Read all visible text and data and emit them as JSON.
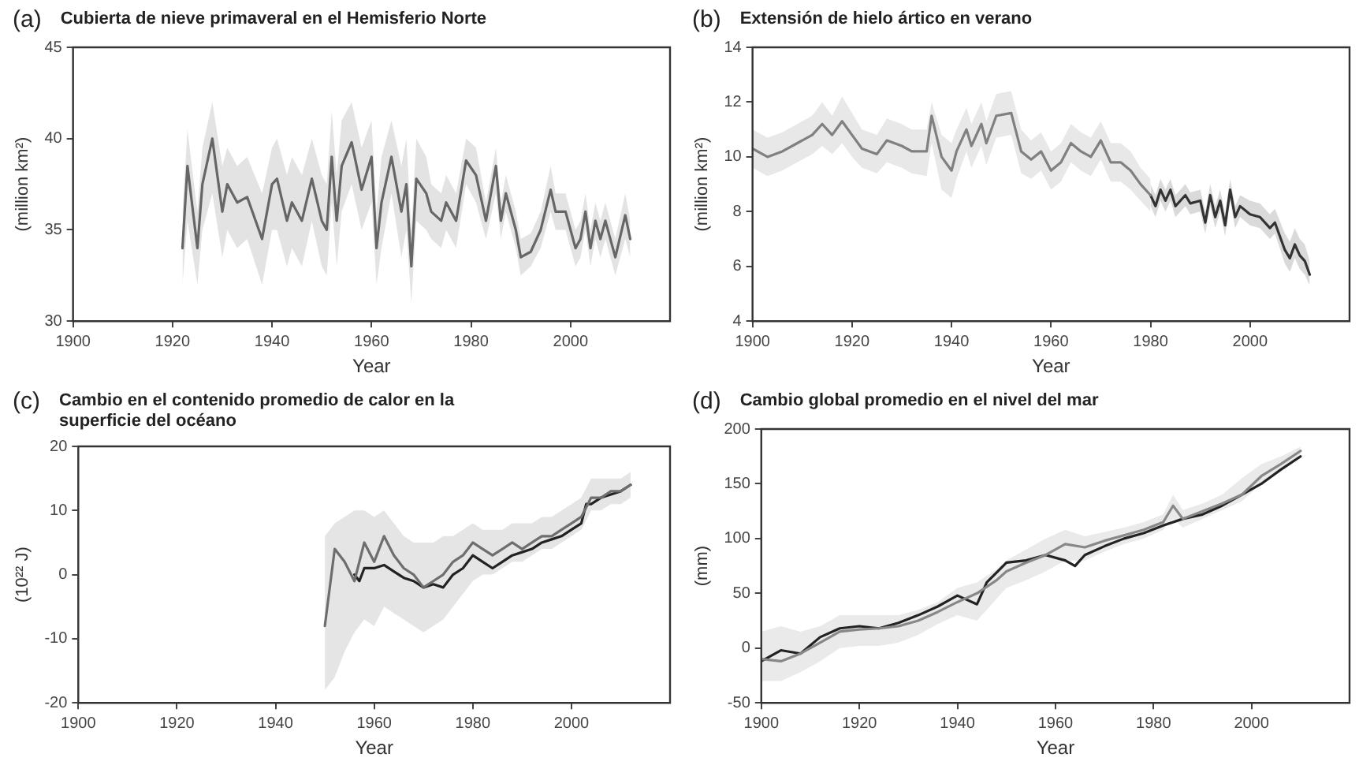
{
  "chart_data": [
    {
      "type": "line",
      "title": "Cubierta de nieve primaveral en el Hemisferio Norte",
      "annotations": [
        "(a)"
      ],
      "xlabel": "Year",
      "ylabel": "(million km²)",
      "xlim": [
        1900,
        2020
      ],
      "xticks": [
        1900,
        1920,
        1940,
        1960,
        1980,
        2000
      ],
      "ylim": [
        30,
        45
      ],
      "yticks": [
        30,
        35,
        40,
        45
      ],
      "grid": false,
      "legend": false,
      "marker": "none",
      "line_style": "solid",
      "series": [
        {
          "color": "#666666",
          "x": [
            1922,
            1923,
            1925,
            1926,
            1928,
            1930,
            1931,
            1933,
            1935,
            1938,
            1940,
            1941,
            1943,
            1944,
            1946,
            1948,
            1950,
            1951,
            1952,
            1953,
            1954,
            1956,
            1958,
            1960,
            1961,
            1962,
            1964,
            1966,
            1967,
            1968,
            1969,
            1971,
            1972,
            1974,
            1975,
            1977,
            1979,
            1981,
            1983,
            1985,
            1986,
            1987,
            1989,
            1990,
            1992,
            1994,
            1996,
            1997,
            1999,
            2001,
            2002,
            2003,
            2004,
            2005,
            2006,
            2007,
            2009,
            2011,
            2012
          ],
          "values": [
            34,
            38.5,
            34,
            37.5,
            40,
            36,
            37.5,
            36.5,
            36.8,
            34.5,
            37.5,
            37.8,
            35.5,
            36.5,
            35.5,
            37.8,
            35.5,
            35,
            39,
            35.5,
            38.5,
            39.8,
            37.2,
            39,
            34,
            36.5,
            39,
            36,
            37.5,
            33,
            37.8,
            37,
            36,
            35.5,
            36.5,
            35.5,
            38.8,
            38,
            35.5,
            38.5,
            35.5,
            37,
            35,
            33.5,
            33.8,
            35,
            37.2,
            36,
            36,
            34,
            34.5,
            36,
            34,
            35.5,
            34.5,
            35.5,
            33.5,
            35.8,
            34.5
          ],
          "lower": [
            32,
            35.5,
            32,
            35,
            37,
            33.5,
            35,
            34,
            34.5,
            32,
            35,
            35,
            33,
            34,
            33,
            35.5,
            33,
            32.5,
            36.5,
            33,
            36,
            37.5,
            35,
            36.5,
            32,
            34,
            37,
            33.5,
            35,
            31,
            35.5,
            35,
            34.5,
            34,
            35,
            34,
            37.5,
            36.5,
            34.5,
            37,
            34.5,
            36,
            34,
            32.5,
            33,
            34,
            36,
            35,
            35,
            33,
            33.5,
            35,
            33,
            34.5,
            33.5,
            34.5,
            32.5,
            34.5,
            33.5
          ],
          "upper": [
            36,
            40.5,
            36,
            39.5,
            42,
            38.5,
            39.5,
            38.5,
            39,
            37,
            39.5,
            40,
            38,
            39,
            38,
            40,
            38,
            37.5,
            41.5,
            38,
            41,
            42,
            39.5,
            41,
            36,
            39,
            41,
            38.5,
            40,
            35,
            40,
            39,
            37.5,
            37,
            38,
            37,
            40,
            39.5,
            36.5,
            39.5,
            36.5,
            38,
            36,
            34.5,
            34.8,
            36,
            38.5,
            37,
            37,
            35,
            35.5,
            37,
            35,
            36.5,
            35.5,
            36.5,
            34.5,
            37,
            35.5
          ]
        }
      ]
    },
    {
      "type": "line",
      "title": "Extensión de hielo ártico en verano",
      "annotations": [
        "(b)"
      ],
      "xlabel": "Year",
      "ylabel": "(million km²)",
      "xlim": [
        1900,
        2020
      ],
      "xticks": [
        1900,
        1920,
        1940,
        1960,
        1980,
        2000
      ],
      "ylim": [
        4,
        14
      ],
      "yticks": [
        4,
        6,
        8,
        10,
        12,
        14
      ],
      "grid": false,
      "legend": false,
      "marker": "none",
      "line_style": "solid",
      "series": [
        {
          "color": "#808080",
          "x": [
            1900,
            1903,
            1906,
            1909,
            1912,
            1914,
            1916,
            1918,
            1920,
            1922,
            1925,
            1927,
            1930,
            1932,
            1935,
            1936,
            1938,
            1940,
            1941,
            1943,
            1944,
            1946,
            1947,
            1949,
            1952,
            1954,
            1956,
            1958,
            1960,
            1962,
            1964,
            1966,
            1968,
            1970,
            1972,
            1974,
            1976,
            1978,
            1980
          ],
          "values": [
            10.3,
            10,
            10.2,
            10.5,
            10.8,
            11.2,
            10.8,
            11.3,
            10.8,
            10.3,
            10.1,
            10.6,
            10.4,
            10.2,
            10.2,
            11.5,
            10,
            9.5,
            10.2,
            11,
            10.4,
            11.2,
            10.5,
            11.5,
            11.6,
            10.2,
            9.9,
            10.2,
            9.5,
            9.8,
            10.5,
            10.2,
            10,
            10.6,
            9.8,
            9.8,
            9.5,
            9,
            8.6
          ],
          "lower": [
            9.6,
            9.3,
            9.5,
            9.8,
            10.1,
            10.4,
            10.1,
            10.5,
            10,
            9.6,
            9.4,
            9.8,
            9.6,
            9.4,
            9.3,
            10.5,
            8.8,
            8.5,
            9.2,
            10.2,
            9.6,
            10.4,
            9.7,
            10.7,
            10.8,
            9.4,
            9.2,
            9.5,
            8.8,
            9.1,
            9.8,
            9.5,
            9.3,
            9.9,
            9.1,
            9.1,
            8.8,
            8.4,
            8
          ],
          "upper": [
            11,
            10.7,
            10.9,
            11.2,
            11.5,
            12,
            11.5,
            12.2,
            11.6,
            11,
            10.8,
            11.4,
            11.2,
            11,
            11,
            12,
            10.8,
            10.5,
            11,
            11.8,
            11.2,
            12,
            11.3,
            12.3,
            12.4,
            11,
            10.6,
            10.9,
            10.2,
            10.5,
            11.2,
            10.9,
            10.7,
            11.3,
            10.5,
            10.5,
            10.2,
            9.6,
            9.2
          ]
        },
        {
          "color": "#333333",
          "x": [
            1980,
            1981,
            1982,
            1983,
            1984,
            1985,
            1987,
            1988,
            1990,
            1991,
            1992,
            1993,
            1994,
            1995,
            1996,
            1997,
            1998,
            2000,
            2002,
            2004,
            2005,
            2007,
            2008,
            2009,
            2010,
            2011,
            2012
          ],
          "values": [
            8.6,
            8.2,
            8.8,
            8.4,
            8.8,
            8.2,
            8.6,
            8.3,
            8.4,
            7.6,
            8.6,
            7.8,
            8.4,
            7.5,
            8.8,
            7.8,
            8.2,
            7.9,
            7.8,
            7.4,
            7.6,
            6.6,
            6.3,
            6.8,
            6.4,
            6.2,
            5.7
          ],
          "lower": [
            8.2,
            7.8,
            8.4,
            8,
            8.4,
            7.8,
            8.2,
            7.9,
            8,
            7.2,
            8.2,
            7.4,
            8,
            7.1,
            8.4,
            7.4,
            7.8,
            7.5,
            7.4,
            7,
            7.2,
            6.1,
            5.8,
            6.3,
            5.9,
            5.7,
            5.3
          ],
          "upper": [
            9,
            8.6,
            9.2,
            8.8,
            9.2,
            8.6,
            9,
            8.7,
            8.8,
            8,
            9,
            8.2,
            8.8,
            7.9,
            9.2,
            8.2,
            8.6,
            8.4,
            8.3,
            7.9,
            8.1,
            7.2,
            6.9,
            7.4,
            7,
            6.8,
            6.2
          ]
        }
      ]
    },
    {
      "type": "line",
      "title": "Cambio en el contenido promedio de calor en la superficie del océano",
      "annotations": [
        "(c)"
      ],
      "xlabel": "Year",
      "ylabel": "(10²² J)",
      "xlim": [
        1900,
        2020
      ],
      "xticks": [
        1900,
        1920,
        1940,
        1960,
        1980,
        2000
      ],
      "ylim": [
        -20,
        20
      ],
      "yticks": [
        -20,
        -10,
        0,
        10,
        20
      ],
      "grid": false,
      "legend": false,
      "marker": "none",
      "line_style": "solid",
      "series": [
        {
          "color": "#6e6e6e",
          "x": [
            1950,
            1952,
            1954,
            1956,
            1958,
            1960,
            1962,
            1964,
            1966,
            1968,
            1970,
            1972,
            1974,
            1976,
            1978,
            1980,
            1982,
            1984,
            1986,
            1988,
            1990,
            1992,
            1994,
            1996,
            1998,
            2000,
            2002,
            2004,
            2006,
            2008,
            2010,
            2012
          ],
          "values": [
            -8,
            4,
            2,
            -1,
            5,
            2,
            6,
            3,
            1,
            0,
            -2,
            -1,
            0,
            2,
            3,
            5,
            4,
            3,
            4,
            5,
            4,
            5,
            6,
            6,
            7,
            8,
            9,
            12,
            12,
            13,
            13,
            14
          ],
          "lower": [
            -18,
            -16,
            -12,
            -9,
            -7,
            -8,
            -5,
            -6,
            -7,
            -8,
            -9,
            -8,
            -7,
            -5,
            -3,
            -1,
            0,
            0,
            1,
            2,
            2,
            3,
            4,
            4,
            5,
            6,
            7,
            10,
            10,
            11,
            11,
            12
          ],
          "upper": [
            6,
            8,
            9,
            10,
            10,
            9,
            10,
            8,
            6,
            5,
            5,
            5,
            6,
            6,
            7,
            8,
            7,
            7,
            7,
            8,
            8,
            8,
            9,
            9,
            10,
            11,
            12,
            15,
            15,
            15,
            15,
            16
          ]
        },
        {
          "color": "#222222",
          "x": [
            1956,
            1957,
            1958,
            1960,
            1962,
            1964,
            1966,
            1968,
            1970,
            1972,
            1974,
            1976,
            1978,
            1980,
            1982,
            1984,
            1986,
            1988,
            1990,
            1992,
            1994,
            1996,
            1998,
            2000,
            2002,
            2003,
            2004,
            2006,
            2008,
            2010,
            2012
          ],
          "values": [
            0,
            -1,
            1,
            1,
            1.5,
            0.5,
            -0.5,
            -1,
            -2,
            -1.5,
            -2,
            0,
            1,
            3,
            2,
            1,
            2,
            3,
            3.5,
            4,
            5,
            5.5,
            6,
            7,
            8,
            11,
            11,
            12,
            12.5,
            13,
            14
          ]
        }
      ]
    },
    {
      "type": "line",
      "title": "Cambio global promedio en el nivel del mar",
      "annotations": [
        "(d)"
      ],
      "xlabel": "Year",
      "ylabel": "(mm)",
      "xlim": [
        1900,
        2020
      ],
      "xticks": [
        1900,
        1920,
        1940,
        1960,
        1980,
        2000
      ],
      "ylim": [
        -50,
        200
      ],
      "yticks": [
        -50,
        0,
        50,
        100,
        150,
        200
      ],
      "grid": false,
      "legend": false,
      "marker": "none",
      "line_style": "solid",
      "series": [
        {
          "color": "#888888",
          "x": [
            1900,
            1904,
            1908,
            1912,
            1916,
            1920,
            1924,
            1928,
            1932,
            1936,
            1940,
            1944,
            1948,
            1950,
            1954,
            1958,
            1962,
            1966,
            1970,
            1974,
            1978,
            1982,
            1984,
            1986,
            1990,
            1994,
            1998,
            2002,
            2006,
            2010
          ],
          "values": [
            -10,
            -12,
            -5,
            5,
            15,
            17,
            18,
            20,
            25,
            33,
            42,
            50,
            62,
            70,
            78,
            85,
            95,
            92,
            98,
            103,
            108,
            115,
            130,
            118,
            125,
            132,
            140,
            157,
            168,
            180
          ],
          "lower": [
            -30,
            -30,
            -22,
            -12,
            0,
            2,
            2,
            5,
            12,
            22,
            30,
            25,
            45,
            55,
            62,
            70,
            80,
            80,
            88,
            95,
            100,
            108,
            118,
            110,
            118,
            126,
            134,
            150,
            162,
            175
          ],
          "upper": [
            15,
            20,
            15,
            20,
            30,
            30,
            30,
            30,
            35,
            42,
            55,
            60,
            72,
            80,
            90,
            100,
            108,
            102,
            106,
            110,
            115,
            122,
            140,
            126,
            132,
            140,
            155,
            168,
            175,
            184
          ]
        },
        {
          "color": "#222222",
          "x": [
            1900,
            1904,
            1908,
            1912,
            1916,
            1920,
            1924,
            1928,
            1932,
            1936,
            1940,
            1944,
            1946,
            1950,
            1954,
            1958,
            1962,
            1964,
            1966,
            1970,
            1974,
            1978,
            1982,
            1986,
            1990,
            1994,
            1998,
            2002,
            2006,
            2010
          ],
          "values": [
            -12,
            -2,
            -5,
            10,
            18,
            20,
            18,
            23,
            30,
            38,
            48,
            40,
            60,
            78,
            80,
            85,
            80,
            75,
            85,
            93,
            100,
            105,
            112,
            118,
            122,
            130,
            140,
            150,
            163,
            175
          ]
        }
      ]
    }
  ]
}
